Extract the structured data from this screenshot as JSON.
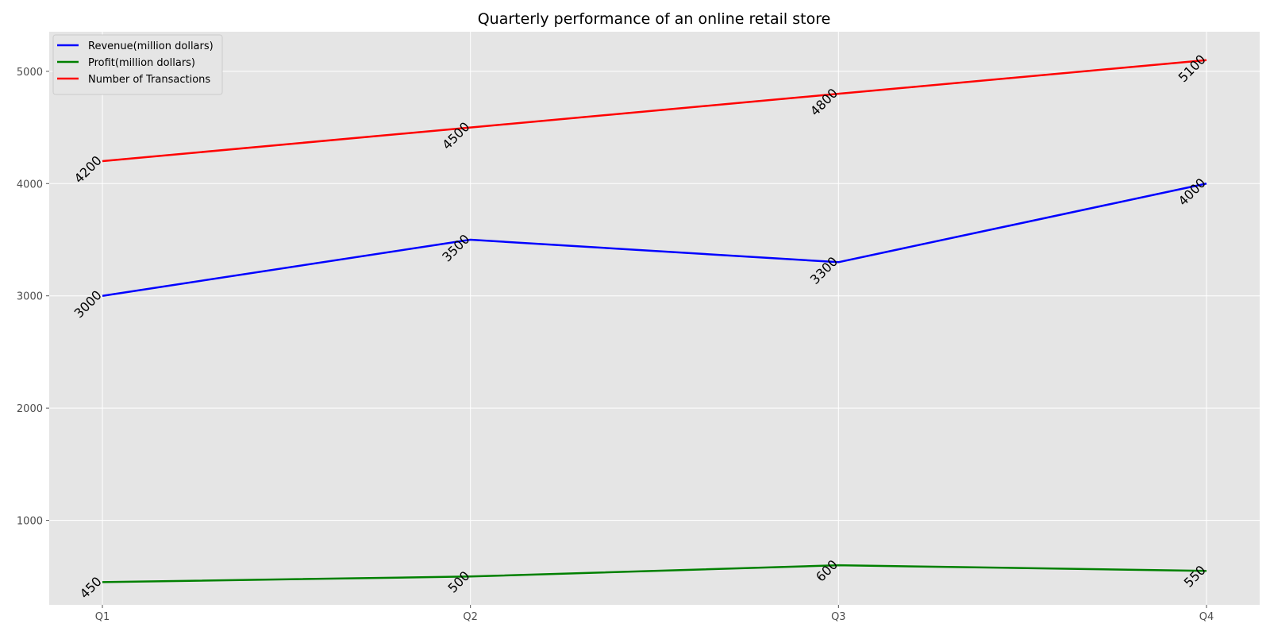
{
  "chart_data": {
    "type": "line",
    "title": "Quarterly performance of an online retail store",
    "xlabel": "",
    "ylabel": "",
    "categories": [
      "Q1",
      "Q2",
      "Q3",
      "Q4"
    ],
    "yticks": [
      1000,
      2000,
      3000,
      4000,
      5000
    ],
    "ylim": [
      247.5,
      5352.5
    ],
    "grid": true,
    "legend_position": "top-left",
    "series": [
      {
        "name": "Revenue(million dollars)",
        "values": [
          3000,
          3500,
          3300,
          4000
        ],
        "color": "#0000ff"
      },
      {
        "name": "Profit(million dollars)",
        "values": [
          450,
          500,
          600,
          550
        ],
        "color": "#008000"
      },
      {
        "name": "Number of Transactions",
        "values": [
          4200,
          4500,
          4800,
          5100
        ],
        "color": "#ff0000"
      }
    ],
    "data_labels": true,
    "background_color": "#e5e5e5",
    "grid_color": "#ffffff"
  }
}
